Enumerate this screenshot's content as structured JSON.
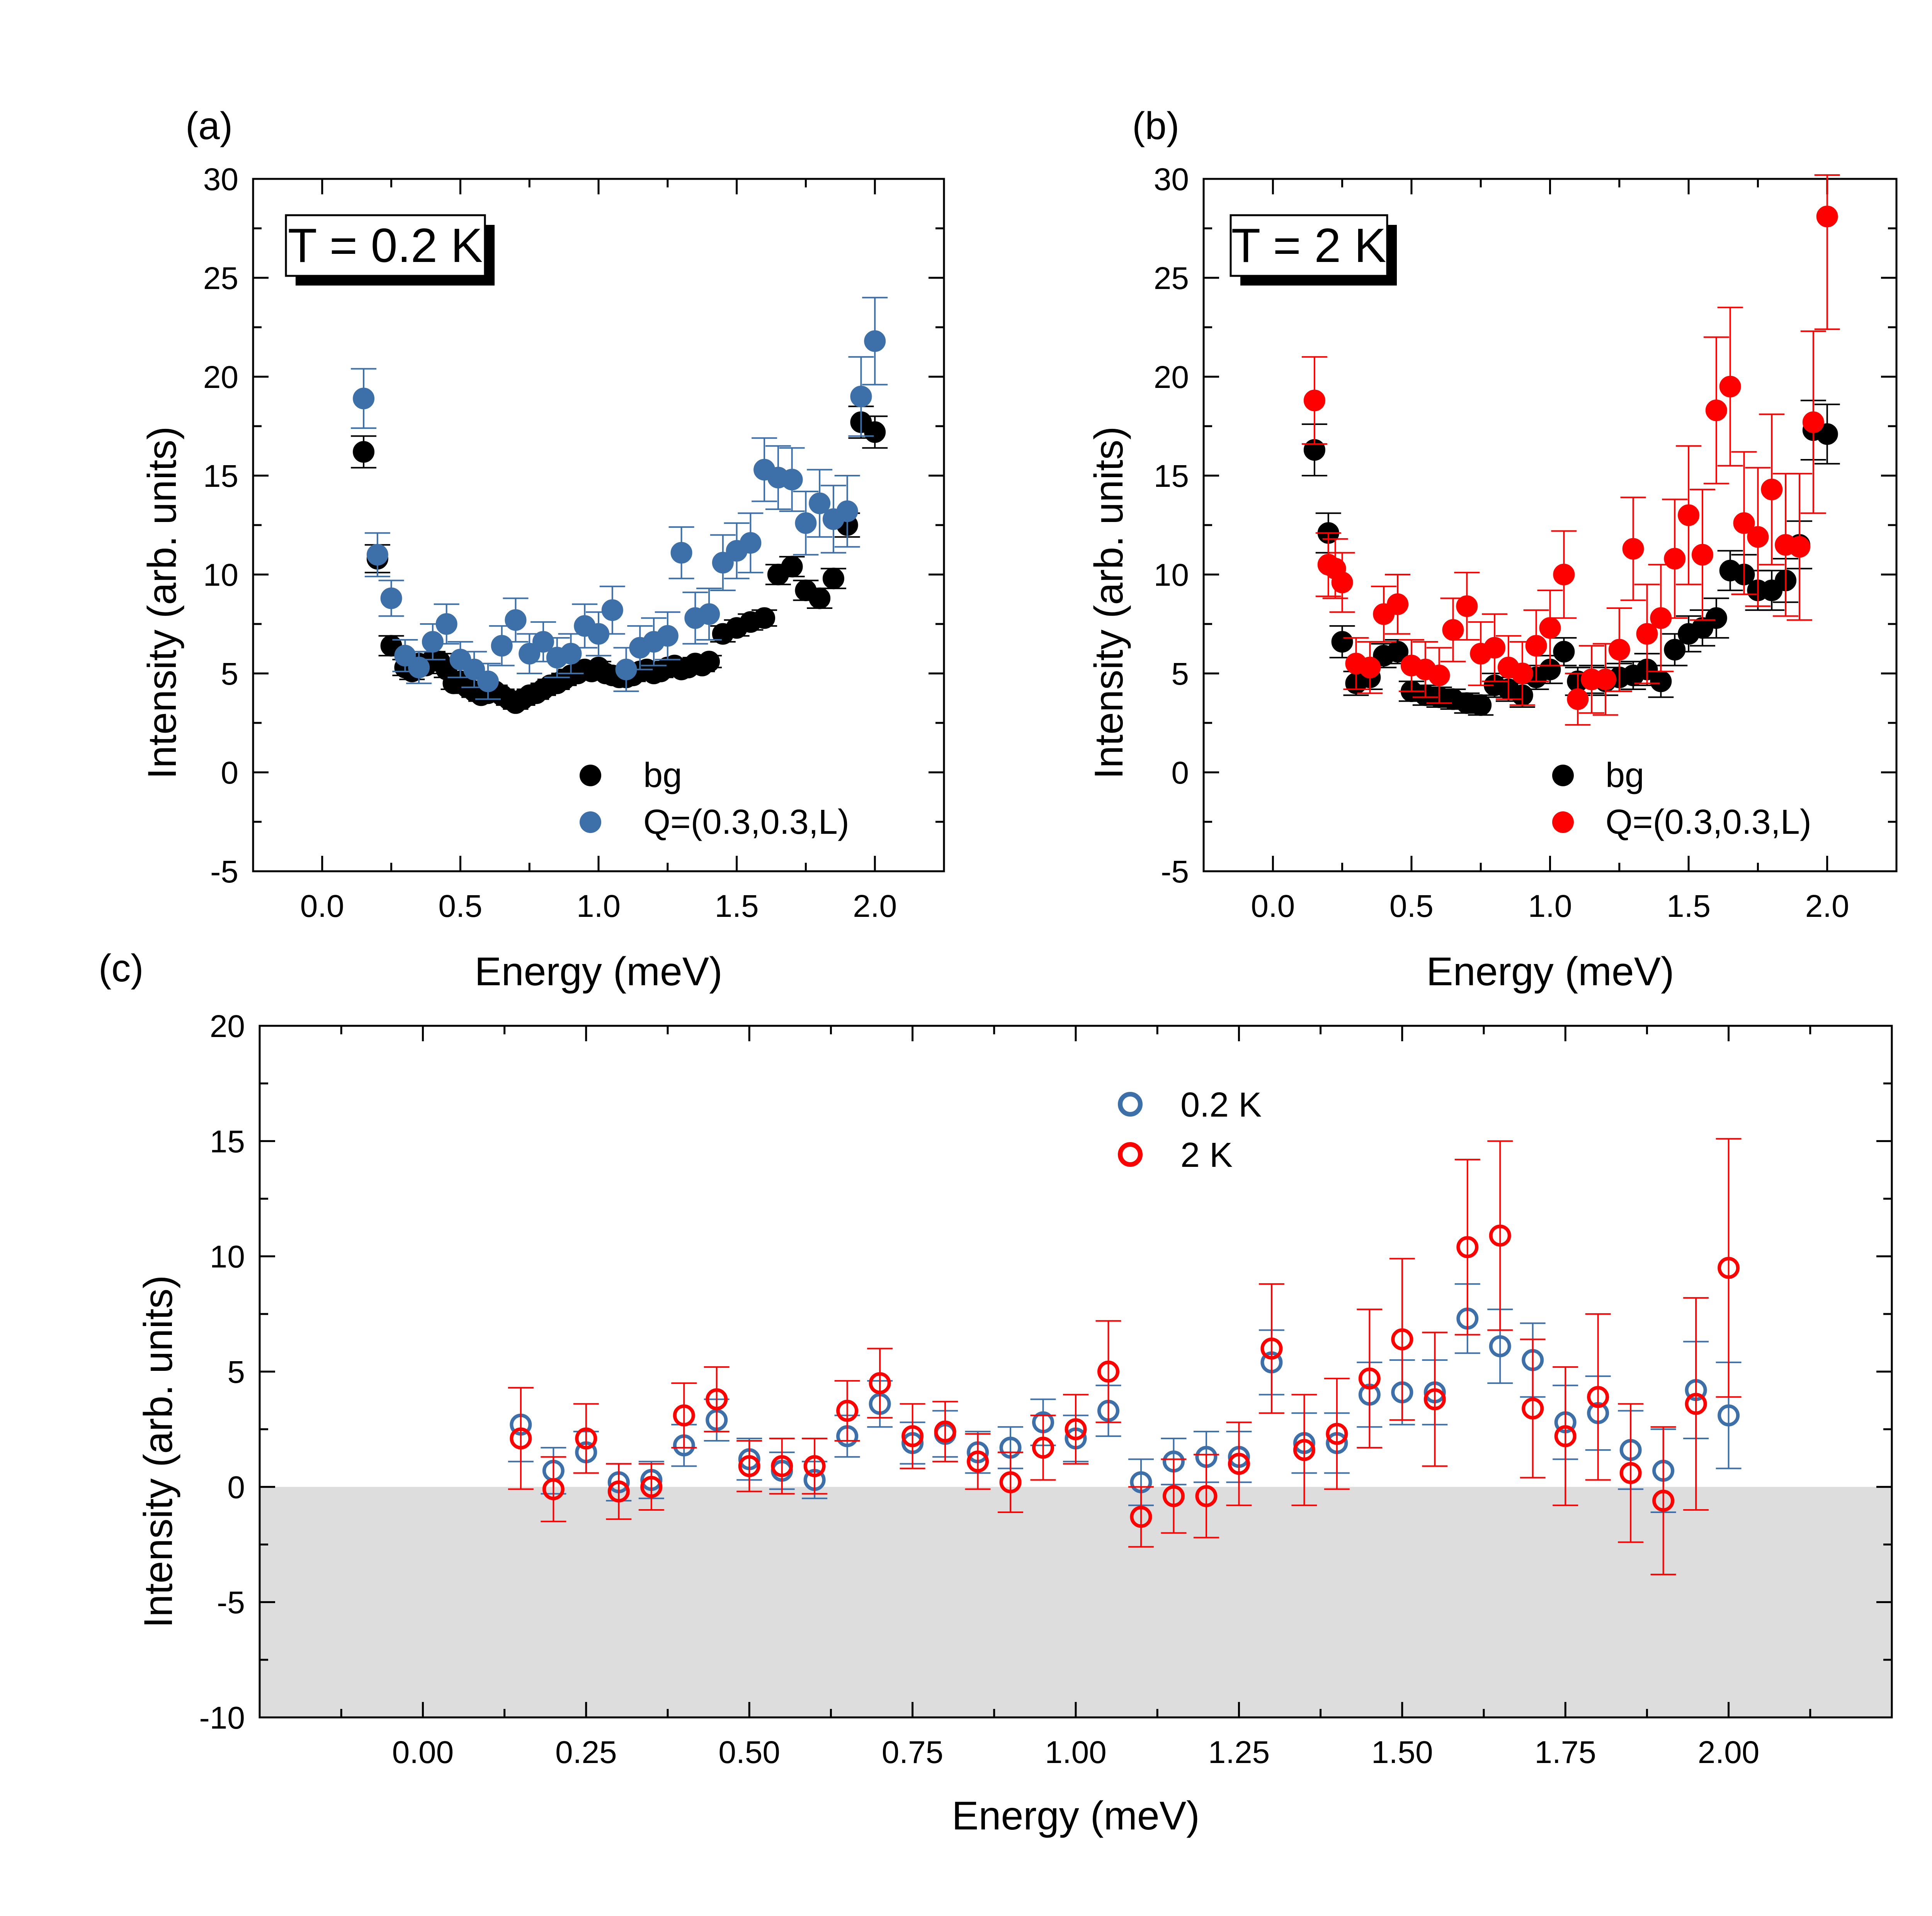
{
  "chart_data": [
    {
      "panel_label": "(a)",
      "type": "scatter",
      "annotation": "T = 0.2 K",
      "xlabel": "Energy (meV)",
      "ylabel": "Intensity (arb. units)",
      "xlim": [
        -0.25,
        2.25
      ],
      "ylim": [
        -5,
        30
      ],
      "xticks": [
        0,
        0.5,
        1,
        1.5,
        2
      ],
      "xtick_labels": [
        "0.0",
        "0.5",
        "1.0",
        "1.5",
        "2.0"
      ],
      "yticks": [
        -5,
        0,
        5,
        10,
        15,
        20,
        25,
        30
      ],
      "ytick_labels": [
        "-5",
        "0",
        "5",
        "10",
        "15",
        "20",
        "25",
        "30"
      ],
      "legend_position": "bottom-right",
      "series": [
        {
          "name": "bg",
          "color": "#000000",
          "x": [
            0.15,
            0.2,
            0.25,
            0.3,
            0.325,
            0.35,
            0.375,
            0.4,
            0.425,
            0.45,
            0.475,
            0.5,
            0.525,
            0.55,
            0.575,
            0.6,
            0.625,
            0.65,
            0.675,
            0.7,
            0.725,
            0.75,
            0.775,
            0.8,
            0.825,
            0.85,
            0.875,
            0.9,
            0.925,
            0.95,
            0.975,
            1.0,
            1.025,
            1.05,
            1.075,
            1.1,
            1.125,
            1.15,
            1.175,
            1.2,
            1.225,
            1.25,
            1.275,
            1.3,
            1.325,
            1.35,
            1.375,
            1.4,
            1.45,
            1.5,
            1.55,
            1.6,
            1.65,
            1.7,
            1.75,
            1.8,
            1.85,
            1.9,
            1.95,
            2.0
          ],
          "y": [
            16.2,
            10.8,
            6.4,
            5.3,
            5.1,
            5.5,
            5.4,
            5.7,
            5.6,
            5.2,
            4.5,
            4.6,
            4.3,
            4.1,
            3.9,
            4.0,
            4.1,
            3.9,
            3.7,
            3.5,
            3.7,
            3.9,
            4.0,
            4.2,
            4.4,
            4.5,
            4.7,
            4.9,
            5.0,
            5.2,
            5.1,
            5.3,
            5.0,
            4.9,
            4.8,
            4.8,
            4.9,
            5.1,
            5.2,
            5.0,
            5.1,
            5.3,
            5.4,
            5.2,
            5.3,
            5.5,
            5.4,
            5.6,
            7.0,
            7.3,
            7.6,
            7.8,
            10.0,
            10.4,
            9.2,
            8.8,
            9.8,
            12.5,
            17.7,
            17.2
          ],
          "err": [
            0.8,
            0.7,
            0.5,
            0.4,
            0.4,
            0.4,
            0.4,
            0.4,
            0.4,
            0.4,
            0.3,
            0.3,
            0.3,
            0.3,
            0.3,
            0.3,
            0.3,
            0.3,
            0.3,
            0.3,
            0.3,
            0.3,
            0.3,
            0.3,
            0.3,
            0.3,
            0.3,
            0.3,
            0.3,
            0.3,
            0.3,
            0.3,
            0.3,
            0.3,
            0.3,
            0.3,
            0.3,
            0.3,
            0.3,
            0.3,
            0.3,
            0.3,
            0.3,
            0.3,
            0.3,
            0.3,
            0.3,
            0.3,
            0.4,
            0.4,
            0.4,
            0.4,
            0.5,
            0.5,
            0.5,
            0.5,
            0.5,
            0.6,
            0.8,
            0.8
          ]
        },
        {
          "name": "Q=(0.3,0.3,L)",
          "color": "#3d6fa8",
          "x": [
            0.15,
            0.2,
            0.25,
            0.3,
            0.35,
            0.4,
            0.45,
            0.5,
            0.55,
            0.6,
            0.65,
            0.7,
            0.75,
            0.8,
            0.85,
            0.9,
            0.95,
            1.0,
            1.05,
            1.1,
            1.15,
            1.2,
            1.25,
            1.3,
            1.35,
            1.4,
            1.45,
            1.5,
            1.55,
            1.6,
            1.65,
            1.7,
            1.75,
            1.8,
            1.85,
            1.9,
            1.95,
            2.0
          ],
          "y": [
            18.9,
            11.0,
            8.8,
            5.9,
            5.3,
            6.6,
            7.5,
            5.7,
            5.2,
            4.6,
            6.4,
            7.7,
            6.0,
            6.6,
            5.8,
            6.0,
            7.4,
            7.0,
            8.2,
            5.2,
            6.3,
            6.6,
            6.9,
            11.1,
            7.8,
            8.0,
            10.6,
            11.2,
            11.6,
            15.3,
            14.9,
            14.8,
            12.6,
            13.6,
            12.8,
            13.2,
            19.0,
            21.8
          ],
          "err": [
            1.5,
            1.1,
            0.9,
            0.8,
            0.8,
            0.9,
            1.0,
            0.9,
            0.9,
            0.9,
            1.0,
            1.1,
            1.0,
            1.0,
            1.0,
            1.0,
            1.1,
            1.1,
            1.2,
            1.1,
            1.1,
            1.2,
            1.2,
            1.3,
            1.3,
            1.3,
            1.4,
            1.4,
            1.5,
            1.6,
            1.6,
            1.6,
            1.6,
            1.7,
            1.7,
            1.8,
            2.0,
            2.2
          ]
        }
      ]
    },
    {
      "panel_label": "(b)",
      "type": "scatter",
      "annotation": "T = 2 K",
      "xlabel": "Energy (meV)",
      "ylabel": "Intensity (arb. units)",
      "xlim": [
        -0.25,
        2.25
      ],
      "ylim": [
        -5,
        30
      ],
      "xticks": [
        0,
        0.5,
        1,
        1.5,
        2
      ],
      "xtick_labels": [
        "0.0",
        "0.5",
        "1.0",
        "1.5",
        "2.0"
      ],
      "yticks": [
        -5,
        0,
        5,
        10,
        15,
        20,
        25,
        30
      ],
      "ytick_labels": [
        "-5",
        "0",
        "5",
        "10",
        "15",
        "20",
        "25",
        "30"
      ],
      "legend_position": "bottom-right",
      "series": [
        {
          "name": "bg",
          "color": "#000000",
          "x": [
            0.15,
            0.2,
            0.25,
            0.3,
            0.35,
            0.4,
            0.45,
            0.5,
            0.55,
            0.6,
            0.65,
            0.7,
            0.75,
            0.8,
            0.85,
            0.9,
            0.95,
            1.0,
            1.05,
            1.1,
            1.15,
            1.2,
            1.25,
            1.3,
            1.35,
            1.4,
            1.45,
            1.5,
            1.55,
            1.6,
            1.65,
            1.7,
            1.75,
            1.8,
            1.85,
            1.9,
            1.95,
            2.0
          ],
          "y": [
            16.3,
            12.1,
            6.6,
            4.5,
            4.8,
            5.9,
            6.1,
            4.1,
            3.9,
            3.8,
            3.7,
            3.5,
            3.4,
            4.4,
            4.2,
            3.9,
            4.8,
            5.2,
            6.1,
            4.6,
            4.7,
            4.6,
            4.8,
            4.9,
            5.2,
            4.6,
            6.2,
            7.0,
            7.3,
            7.8,
            10.2,
            10.0,
            9.2,
            9.2,
            9.7,
            11.5,
            17.3,
            17.1
          ],
          "err": [
            1.3,
            1.0,
            0.8,
            0.6,
            0.6,
            0.6,
            0.6,
            0.5,
            0.5,
            0.5,
            0.5,
            0.5,
            0.5,
            0.6,
            0.6,
            0.6,
            0.6,
            0.7,
            0.7,
            0.7,
            0.7,
            0.7,
            0.7,
            0.7,
            0.8,
            0.8,
            0.8,
            0.9,
            0.9,
            1.0,
            1.0,
            1.0,
            1.0,
            1.0,
            1.1,
            1.2,
            1.5,
            1.5
          ]
        },
        {
          "name": "Q=(0.3,0.3,L)",
          "color": "#ff0000",
          "x": [
            0.15,
            0.2,
            0.225,
            0.25,
            0.3,
            0.35,
            0.4,
            0.45,
            0.5,
            0.55,
            0.6,
            0.65,
            0.7,
            0.75,
            0.8,
            0.85,
            0.9,
            0.95,
            1.0,
            1.05,
            1.1,
            1.15,
            1.2,
            1.25,
            1.3,
            1.35,
            1.4,
            1.45,
            1.5,
            1.55,
            1.6,
            1.65,
            1.7,
            1.75,
            1.8,
            1.85,
            1.9,
            1.95,
            2.0
          ],
          "y": [
            18.8,
            10.5,
            10.3,
            9.6,
            5.5,
            5.3,
            8.0,
            8.5,
            5.4,
            5.2,
            4.9,
            7.2,
            8.4,
            6.0,
            6.3,
            5.3,
            5.0,
            6.4,
            7.3,
            10.0,
            3.7,
            4.7,
            4.7,
            6.2,
            11.3,
            7.0,
            7.8,
            10.8,
            13.0,
            11.0,
            18.3,
            19.5,
            12.6,
            11.9,
            14.3,
            11.5,
            11.4,
            17.7,
            28.1
          ],
          "err": [
            2.2,
            1.6,
            1.5,
            1.5,
            1.3,
            1.3,
            1.4,
            1.5,
            1.3,
            1.4,
            1.4,
            1.6,
            1.7,
            1.6,
            1.7,
            1.6,
            1.6,
            1.8,
            1.9,
            2.2,
            1.3,
            1.7,
            1.8,
            2.1,
            2.6,
            2.5,
            2.7,
            3.0,
            3.5,
            3.3,
            3.7,
            4.0,
            3.6,
            3.5,
            3.8,
            3.6,
            3.7,
            4.6,
            5.7
          ]
        }
      ]
    },
    {
      "panel_label": "(c)",
      "type": "scatter",
      "xlabel": "Energy (meV)",
      "ylabel": "Intensity (arb. units)",
      "xlim": [
        -0.25,
        2.25
      ],
      "ylim": [
        -10,
        20
      ],
      "xticks": [
        0,
        0.25,
        0.5,
        0.75,
        1,
        1.25,
        1.5,
        1.75,
        2
      ],
      "xtick_labels": [
        "0.00",
        "0.25",
        "0.50",
        "0.75",
        "1.00",
        "1.25",
        "1.50",
        "1.75",
        "2.00"
      ],
      "yticks": [
        -10,
        -5,
        0,
        5,
        10,
        15,
        20
      ],
      "ytick_labels": [
        "-10",
        "-5",
        "0",
        "5",
        "10",
        "15",
        "20"
      ],
      "shaded_region": "below 0",
      "legend_position": "top-center",
      "series": [
        {
          "name": "0.2 K",
          "color": "#3d6fa8",
          "x": [
            0.15,
            0.2,
            0.25,
            0.3,
            0.35,
            0.4,
            0.45,
            0.5,
            0.55,
            0.6,
            0.65,
            0.7,
            0.75,
            0.8,
            0.85,
            0.9,
            0.95,
            1.0,
            1.05,
            1.1,
            1.15,
            1.2,
            1.25,
            1.3,
            1.35,
            1.4,
            1.45,
            1.5,
            1.55,
            1.6,
            1.65,
            1.7,
            1.75,
            1.8,
            1.85,
            1.9,
            1.95,
            2.0
          ],
          "y": [
            2.7,
            0.7,
            1.5,
            0.2,
            0.3,
            1.8,
            2.9,
            1.2,
            0.7,
            0.3,
            2.2,
            3.6,
            1.9,
            2.3,
            1.5,
            1.7,
            2.8,
            2.1,
            3.3,
            0.2,
            1.1,
            1.3,
            1.3,
            5.4,
            1.9,
            1.9,
            4.0,
            4.1,
            4.1,
            7.3,
            6.1,
            5.5,
            2.8,
            3.2,
            1.6,
            0.7,
            4.2,
            3.1
          ],
          "err": [
            1.6,
            1.0,
            0.9,
            0.8,
            0.8,
            0.9,
            0.9,
            0.9,
            0.8,
            0.8,
            0.9,
            1.0,
            0.9,
            1.0,
            0.9,
            0.9,
            1.0,
            1.0,
            1.1,
            1.0,
            1.0,
            1.1,
            1.1,
            1.4,
            1.3,
            1.3,
            1.4,
            1.4,
            1.4,
            1.5,
            1.6,
            1.6,
            1.6,
            1.6,
            1.7,
            1.8,
            2.1,
            2.3
          ]
        },
        {
          "name": "2 K",
          "color": "#ff0000",
          "x": [
            0.15,
            0.2,
            0.25,
            0.3,
            0.35,
            0.4,
            0.45,
            0.5,
            0.55,
            0.6,
            0.65,
            0.7,
            0.75,
            0.8,
            0.85,
            0.9,
            0.95,
            1.0,
            1.05,
            1.1,
            1.15,
            1.2,
            1.25,
            1.3,
            1.35,
            1.4,
            1.45,
            1.5,
            1.55,
            1.6,
            1.65,
            1.7,
            1.75,
            1.8,
            1.85,
            1.9,
            1.95,
            2.0
          ],
          "y": [
            2.1,
            -0.1,
            2.1,
            -0.2,
            0.0,
            3.1,
            3.8,
            0.9,
            0.9,
            0.9,
            3.3,
            4.5,
            2.2,
            2.4,
            1.1,
            0.2,
            1.7,
            2.5,
            5.0,
            -1.3,
            -0.4,
            -0.4,
            1.0,
            6.0,
            1.6,
            2.3,
            4.7,
            6.4,
            3.8,
            10.4,
            10.9,
            3.4,
            2.2,
            3.9,
            0.6,
            -0.6,
            3.6,
            9.5
          ],
          "err": [
            2.2,
            1.4,
            1.5,
            1.2,
            1.0,
            1.4,
            1.4,
            1.1,
            1.2,
            1.2,
            1.3,
            1.5,
            1.4,
            1.3,
            1.2,
            1.3,
            1.4,
            1.5,
            2.2,
            1.3,
            1.6,
            1.8,
            1.8,
            2.8,
            2.4,
            2.4,
            3.0,
            3.5,
            2.9,
            3.8,
            4.1,
            3.0,
            3.0,
            3.6,
            3.0,
            3.2,
            4.6,
            5.6
          ]
        }
      ]
    }
  ]
}
